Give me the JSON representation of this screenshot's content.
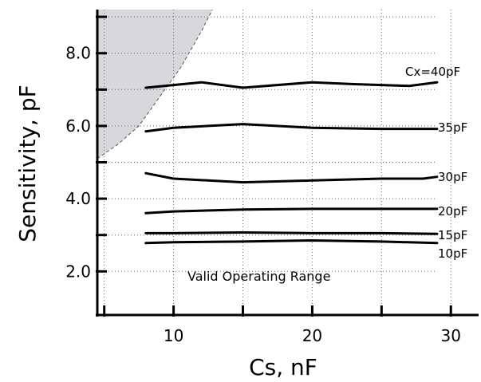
{
  "chart_data": {
    "type": "line",
    "xlabel": "Cs, nF",
    "ylabel": "Sensitivity, pF",
    "xlim": [
      4.5,
      32
    ],
    "ylim": [
      0.8,
      9.2
    ],
    "x_ticks": [
      10,
      20,
      30
    ],
    "y_ticks": [
      2.0,
      4.0,
      6.0,
      8.0
    ],
    "x_tick_labels": [
      "10",
      "20",
      "30"
    ],
    "y_tick_labels": [
      "2.0",
      "4.0",
      "6.0",
      "8.0"
    ],
    "grid": true,
    "annotation": "Valid Operating Range",
    "invalid_region_color": "#d8d8dc",
    "invalid_region_boundary": [
      {
        "x": 4.5,
        "y": 5.1
      },
      {
        "x": 6.0,
        "y": 5.5
      },
      {
        "x": 7.5,
        "y": 6.0
      },
      {
        "x": 9.0,
        "y": 6.8
      },
      {
        "x": 10.5,
        "y": 7.6
      },
      {
        "x": 12.0,
        "y": 8.6
      },
      {
        "x": 12.8,
        "y": 9.2
      }
    ],
    "series": [
      {
        "name": "Cx=40pF",
        "x": [
          8,
          12,
          15,
          20,
          23,
          27,
          29
        ],
        "y": [
          7.05,
          7.2,
          7.05,
          7.2,
          7.15,
          7.1,
          7.2
        ]
      },
      {
        "name": "35pF",
        "x": [
          8,
          10,
          15,
          20,
          25,
          29
        ],
        "y": [
          5.85,
          5.95,
          6.05,
          5.95,
          5.92,
          5.92
        ]
      },
      {
        "name": "30pF",
        "x": [
          8,
          10,
          15,
          20,
          25,
          28,
          29
        ],
        "y": [
          4.7,
          4.55,
          4.45,
          4.5,
          4.55,
          4.55,
          4.6
        ]
      },
      {
        "name": "20pF",
        "x": [
          8,
          10,
          15,
          20,
          25,
          29
        ],
        "y": [
          3.6,
          3.65,
          3.7,
          3.72,
          3.72,
          3.72
        ]
      },
      {
        "name": "15pF",
        "x": [
          8,
          10,
          15,
          20,
          25,
          29
        ],
        "y": [
          3.05,
          3.05,
          3.07,
          3.05,
          3.05,
          3.03
        ]
      },
      {
        "name": "10pF",
        "x": [
          8,
          10,
          15,
          20,
          25,
          29
        ],
        "y": [
          2.78,
          2.8,
          2.82,
          2.85,
          2.82,
          2.78
        ]
      }
    ]
  }
}
